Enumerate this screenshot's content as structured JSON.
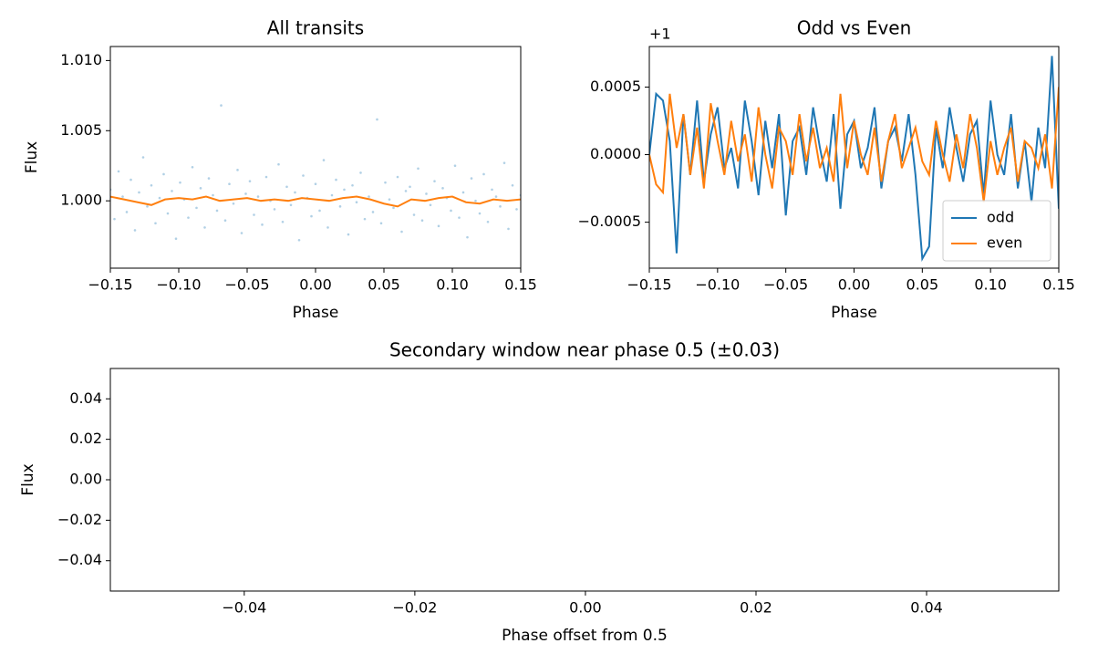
{
  "chart_data": [
    {
      "type": "scatter",
      "title": "All transits",
      "xlabel": "Phase",
      "ylabel": "Flux",
      "xlim": [
        -0.15,
        0.15
      ],
      "xticks": [
        {
          "value": -0.15,
          "label": "−0.15"
        },
        {
          "value": -0.1,
          "label": "−0.10"
        },
        {
          "value": -0.05,
          "label": "−0.05"
        },
        {
          "value": 0,
          "label": "0.00"
        },
        0.05,
        {
          "value": 0.1,
          "label": "0.10"
        },
        0.15
      ],
      "ylim": [
        0.9952,
        1.011
      ],
      "yticks": [
        {
          "value": 1.0,
          "label": "1.000"
        },
        1.005,
        {
          "value": 1.01,
          "label": "1.010"
        }
      ],
      "color": "#1f77b4",
      "x": [
        -0.15,
        -0.147,
        -0.144,
        -0.141,
        -0.138,
        -0.135,
        -0.132,
        -0.129,
        -0.126,
        -0.123,
        -0.12,
        -0.117,
        -0.114,
        -0.111,
        -0.108,
        -0.105,
        -0.102,
        -0.099,
        -0.096,
        -0.093,
        -0.09,
        -0.087,
        -0.084,
        -0.081,
        -0.078,
        -0.075,
        -0.072,
        -0.069,
        -0.066,
        -0.063,
        -0.06,
        -0.057,
        -0.054,
        -0.051,
        -0.048,
        -0.045,
        -0.042,
        -0.039,
        -0.036,
        -0.033,
        -0.03,
        -0.027,
        -0.024,
        -0.021,
        -0.018,
        -0.015,
        -0.012,
        -0.009,
        -0.006,
        -0.003,
        0,
        0.003,
        0.006,
        0.009,
        0.012,
        0.015,
        0.018,
        0.021,
        0.024,
        0.027,
        0.03,
        0.033,
        0.036,
        0.039,
        0.042,
        0.045,
        0.048,
        0.051,
        0.054,
        0.057,
        0.06,
        0.063,
        0.066,
        0.069,
        0.072,
        0.075,
        0.078,
        0.081,
        0.084,
        0.087,
        0.09,
        0.093,
        0.096,
        0.099,
        0.102,
        0.105,
        0.108,
        0.111,
        0.114,
        0.117,
        0.12,
        0.123,
        0.126,
        0.129,
        0.132,
        0.135,
        0.138,
        0.141,
        0.144,
        0.147,
        0.15
      ],
      "values": [
        1.0008,
        0.9987,
        1.0021,
        1.0003,
        0.9992,
        1.0015,
        0.9979,
        1.0006,
        1.0031,
        0.9996,
        1.0011,
        0.9984,
        1.0002,
        1.0019,
        0.9991,
        1.0007,
        0.9973,
        1.0013,
        1.0001,
        0.9988,
        1.0024,
        0.9995,
        1.0009,
        0.9981,
        1.0016,
        1.0004,
        0.9993,
        1.0068,
        0.9986,
        1.0012,
        0.9998,
        1.0022,
        0.9977,
        1.0005,
        1.0014,
        0.999,
        1.0003,
        0.9983,
        1.0017,
        1.0,
        0.9994,
        1.0026,
        0.9985,
        1.001,
        0.9997,
        1.0006,
        0.9972,
        1.0018,
        1.0002,
        0.9989,
        1.0012,
        0.9993,
        1.0029,
        0.9981,
        1.0004,
        1.0015,
        0.9996,
        1.0008,
        0.9976,
        1.0011,
        0.9999,
        1.002,
        0.9987,
        1.0003,
        0.9992,
        1.0058,
        0.9984,
        1.0013,
        1.0001,
        0.9995,
        1.0017,
        0.9978,
        1.0007,
        1.001,
        0.999,
        1.0023,
        0.9986,
        1.0005,
        0.9997,
        1.0014,
        0.9982,
        1.0009,
        1.0002,
        0.9993,
        1.0025,
        0.9988,
        1.0006,
        0.9974,
        1.0016,
        1.0,
        0.9991,
        1.0019,
        0.9985,
        1.0008,
        1.0003,
        0.9996,
        1.0027,
        0.998,
        1.0011,
        0.9994,
        1.0004
      ],
      "line": {
        "color": "#ff7f0e",
        "x": [
          -0.15,
          -0.14,
          -0.13,
          -0.12,
          -0.11,
          -0.1,
          -0.09,
          -0.08,
          -0.07,
          -0.06,
          -0.05,
          -0.04,
          -0.03,
          -0.02,
          -0.01,
          0,
          0.01,
          0.02,
          0.03,
          0.04,
          0.05,
          0.06,
          0.07,
          0.08,
          0.09,
          0.1,
          0.11,
          0.12,
          0.13,
          0.14,
          0.15
        ],
        "values": [
          1.0003,
          1.0001,
          0.9999,
          0.9997,
          1.0001,
          1.0002,
          1.0001,
          1.0003,
          1.0,
          1.0001,
          1.0002,
          1.0,
          1.0001,
          1.0,
          1.0002,
          1.0001,
          1.0,
          1.0002,
          1.0003,
          1.0001,
          0.9998,
          0.9996,
          1.0001,
          1.0,
          1.0002,
          1.0003,
          0.9999,
          0.9998,
          1.0001,
          1.0,
          1.0001
        ]
      }
    },
    {
      "type": "line",
      "title": "Odd vs Even",
      "xlabel": "Phase",
      "offset_text": "+1",
      "xlim": [
        -0.15,
        0.15
      ],
      "xticks": [
        {
          "value": -0.15,
          "label": "−0.15"
        },
        {
          "value": -0.1,
          "label": "−0.10"
        },
        {
          "value": -0.05,
          "label": "−0.05"
        },
        {
          "value": 0,
          "label": "0.00"
        },
        0.05,
        {
          "value": 0.1,
          "label": "0.10"
        },
        0.15
      ],
      "ylim": [
        -0.00084,
        0.0008
      ],
      "yticks": [
        {
          "value": -0.0005,
          "label": "−0.0005"
        },
        {
          "value": 0,
          "label": "0.0000"
        },
        0.0005
      ],
      "legend": "lower right",
      "x": [
        -0.15,
        -0.145,
        -0.14,
        -0.135,
        -0.13,
        -0.125,
        -0.12,
        -0.115,
        -0.11,
        -0.105,
        -0.1,
        -0.095,
        -0.09,
        -0.085,
        -0.08,
        -0.075,
        -0.07,
        -0.065,
        -0.06,
        -0.055,
        -0.05,
        -0.045,
        -0.04,
        -0.035,
        -0.03,
        -0.025,
        -0.02,
        -0.015,
        -0.01,
        -0.005,
        0,
        0.005,
        0.01,
        0.015,
        0.02,
        0.025,
        0.03,
        0.035,
        0.04,
        0.045,
        0.05,
        0.055,
        0.06,
        0.065,
        0.07,
        0.075,
        0.08,
        0.085,
        0.09,
        0.095,
        0.1,
        0.105,
        0.11,
        0.115,
        0.12,
        0.125,
        0.13,
        0.135,
        0.14,
        0.145,
        0.15
      ],
      "series": [
        {
          "name": "odd",
          "color": "#1f77b4",
          "values": [
            0,
            0.00045,
            0.0004,
            0.0001,
            -0.00073,
            0.0003,
            -0.00015,
            0.0004,
            -0.0002,
            0.00015,
            0.00035,
            -0.0001,
            5e-05,
            -0.00025,
            0.0004,
            0.0001,
            -0.0003,
            0.00025,
            -0.0001,
            0.0003,
            -0.00045,
            0.0001,
            0.0002,
            -0.00015,
            0.00035,
            5e-05,
            -0.0002,
            0.0003,
            -0.0004,
            0.00015,
            0.00025,
            -0.0001,
            5e-05,
            0.00035,
            -0.00025,
            0.0001,
            0.0002,
            -5e-05,
            0.0003,
            -0.00015,
            -0.00077,
            -0.00068,
            0.0002,
            -0.0001,
            0.00035,
            5e-05,
            -0.0002,
            0.00015,
            0.00025,
            -0.0003,
            0.0004,
            0,
            -0.00015,
            0.0003,
            -0.00025,
            0.0001,
            -0.00035,
            0.0002,
            -0.0001,
            0.00073,
            -0.0004
          ]
        },
        {
          "name": "even",
          "color": "#ff7f0e",
          "values": [
            0,
            -0.00022,
            -0.00028,
            0.00045,
            5e-05,
            0.0003,
            -0.00015,
            0.0002,
            -0.00025,
            0.00038,
            0.0001,
            -0.00015,
            0.00025,
            -5e-05,
            0.00015,
            -0.0002,
            0.00035,
            0,
            -0.00025,
            0.0002,
            0.0001,
            -0.00015,
            0.0003,
            -5e-05,
            0.0002,
            -0.0001,
            5e-05,
            -0.0002,
            0.00045,
            -0.0001,
            0.00025,
            0,
            -0.00015,
            0.0002,
            -0.0002,
            0.0001,
            0.0003,
            -0.0001,
            5e-05,
            0.0002,
            -5e-05,
            -0.00015,
            0.00025,
            0,
            -0.0002,
            0.00015,
            -0.0001,
            0.0003,
            5e-05,
            -0.00035,
            0.0001,
            -0.00015,
            5e-05,
            0.0002,
            -0.0002,
            0.0001,
            5e-05,
            -0.0001,
            0.00015,
            -0.00025,
            0.0005
          ]
        }
      ]
    },
    {
      "type": "scatter",
      "title": "Secondary window near phase 0.5 (±0.03)",
      "xlabel": "Phase offset from 0.5",
      "ylabel": "Flux",
      "xlim": [
        -0.0557,
        0.0555
      ],
      "xticks": [
        {
          "value": -0.04,
          "label": "−0.04"
        },
        {
          "value": -0.02,
          "label": "−0.02"
        },
        {
          "value": 0,
          "label": "0.00"
        },
        0.02,
        0.04
      ],
      "ylim": [
        -0.055,
        0.055
      ],
      "yticks": [
        {
          "value": -0.04,
          "label": "−0.04"
        },
        {
          "value": -0.02,
          "label": "−0.02"
        },
        {
          "value": 0,
          "label": "0.00"
        },
        0.02,
        0.04
      ]
    }
  ]
}
